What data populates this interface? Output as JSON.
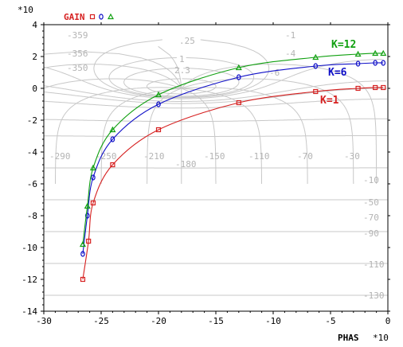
{
  "chart_data": {
    "type": "line",
    "title": "",
    "xlabel": "PHAS",
    "xlabel_multiplier": "*10",
    "ylabel": "GAIN",
    "ylabel_multiplier": "*10",
    "xlim": [
      -30,
      0
    ],
    "ylim": [
      -14,
      4
    ],
    "x_ticks": [
      "-30",
      "-25",
      "-20",
      "-15",
      "-10",
      "-5",
      "0"
    ],
    "y_ticks": [
      "-14",
      "-12",
      "-10",
      "-8",
      "-6",
      "-4",
      "-2",
      "0",
      "2",
      "4"
    ],
    "grid": true,
    "grid_description": "Nichols chart grid (constant closed-loop magnitude / phase contours)",
    "grid_labels": [
      "-359",
      "-356",
      "-350",
      ".25",
      "1",
      "2.3",
      "-1",
      "-4",
      "-6",
      "-290",
      "-250",
      "-210",
      "-180",
      "-150",
      "-110",
      "-70",
      "-30",
      "-10",
      "-50",
      "-70",
      "-90",
      "-110",
      "-130"
    ],
    "legend_placement": "top-left",
    "series": [
      {
        "name": "K=1",
        "color": "#d62020",
        "marker": "square",
        "values": [
          [
            -26.6,
            -12.0
          ],
          [
            -26.1,
            -9.6
          ],
          [
            -25.7,
            -7.2
          ],
          [
            -24.0,
            -4.8
          ],
          [
            -20.0,
            -2.6
          ],
          [
            -13.0,
            -0.9
          ],
          [
            -6.3,
            -0.2
          ],
          [
            -2.6,
            0.0
          ],
          [
            -1.1,
            0.05
          ],
          [
            -0.4,
            0.05
          ]
        ]
      },
      {
        "name": "K=6",
        "color": "#1010c8",
        "marker": "circle",
        "values": [
          [
            -26.6,
            -10.4
          ],
          [
            -26.2,
            -8.0
          ],
          [
            -25.7,
            -5.6
          ],
          [
            -24.0,
            -3.2
          ],
          [
            -20.0,
            -1.0
          ],
          [
            -13.0,
            0.7
          ],
          [
            -6.3,
            1.4
          ],
          [
            -2.6,
            1.55
          ],
          [
            -1.1,
            1.6
          ],
          [
            -0.4,
            1.6
          ]
        ]
      },
      {
        "name": "K=12",
        "color": "#10a010",
        "marker": "triangle",
        "values": [
          [
            -26.6,
            -9.8
          ],
          [
            -26.2,
            -7.4
          ],
          [
            -25.7,
            -5.0
          ],
          [
            -24.0,
            -2.6
          ],
          [
            -20.0,
            -0.4
          ],
          [
            -13.0,
            1.3
          ],
          [
            -6.3,
            1.95
          ],
          [
            -2.6,
            2.15
          ],
          [
            -1.1,
            2.2
          ],
          [
            -0.4,
            2.2
          ]
        ]
      }
    ]
  }
}
